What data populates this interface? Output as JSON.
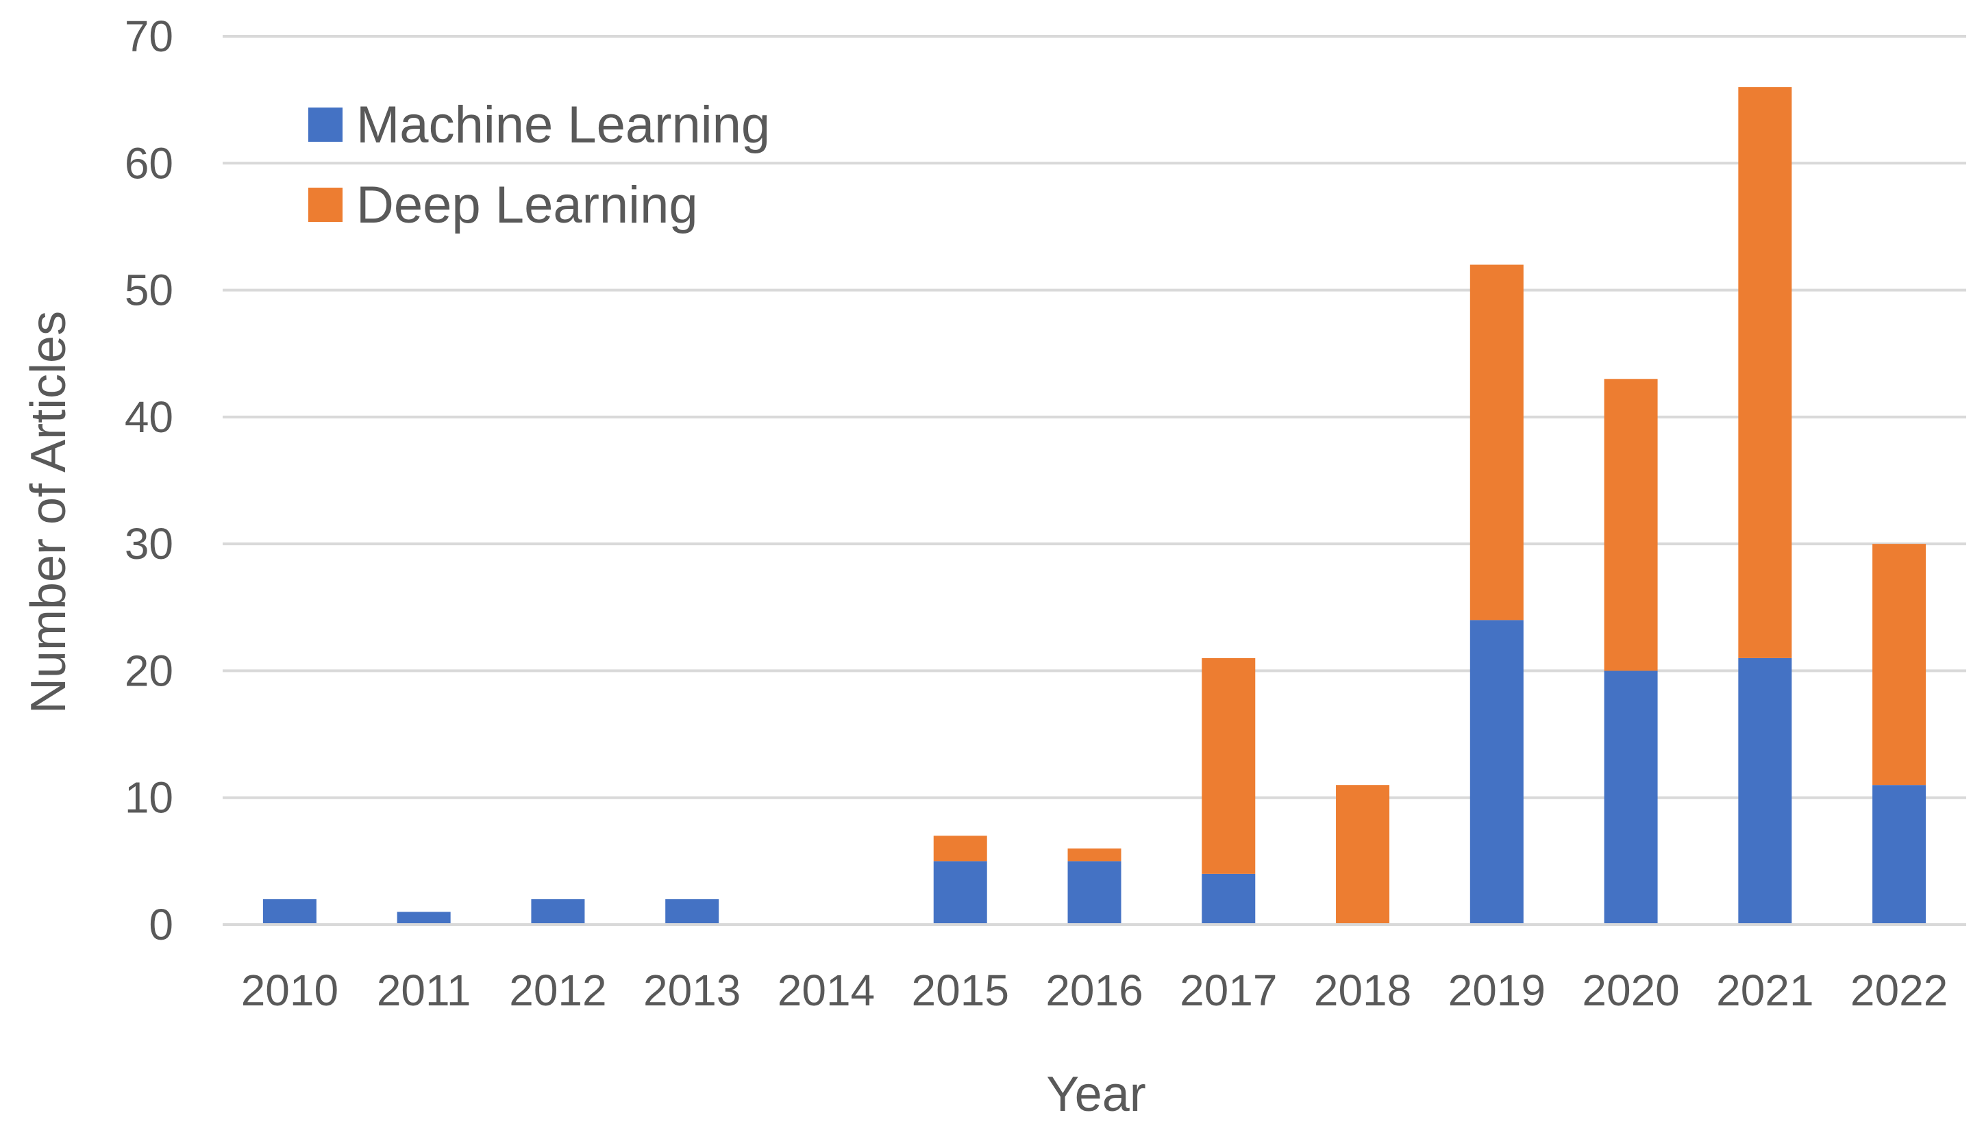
{
  "chart_data": {
    "type": "bar",
    "stacked": true,
    "title": "",
    "xlabel": "Year",
    "ylabel": "Number of Articles",
    "ylim": [
      0,
      70
    ],
    "yticks": [
      "0",
      "10",
      "20",
      "30",
      "40",
      "50",
      "60",
      "70"
    ],
    "grid": true,
    "legend_position": "top-left",
    "categories": [
      "2010",
      "2011",
      "2012",
      "2013",
      "2014",
      "2015",
      "2016",
      "2017",
      "2018",
      "2019",
      "2020",
      "2021",
      "2022"
    ],
    "series": [
      {
        "name": "Machine Learning",
        "color": "#4472C4",
        "values": [
          2,
          1,
          2,
          2,
          0,
          5,
          5,
          4,
          0,
          24,
          20,
          21,
          11
        ]
      },
      {
        "name": "Deep Learning",
        "color": "#ED7D31",
        "values": [
          0,
          0,
          0,
          0,
          0,
          2,
          1,
          17,
          11,
          28,
          23,
          45,
          19
        ]
      }
    ]
  }
}
